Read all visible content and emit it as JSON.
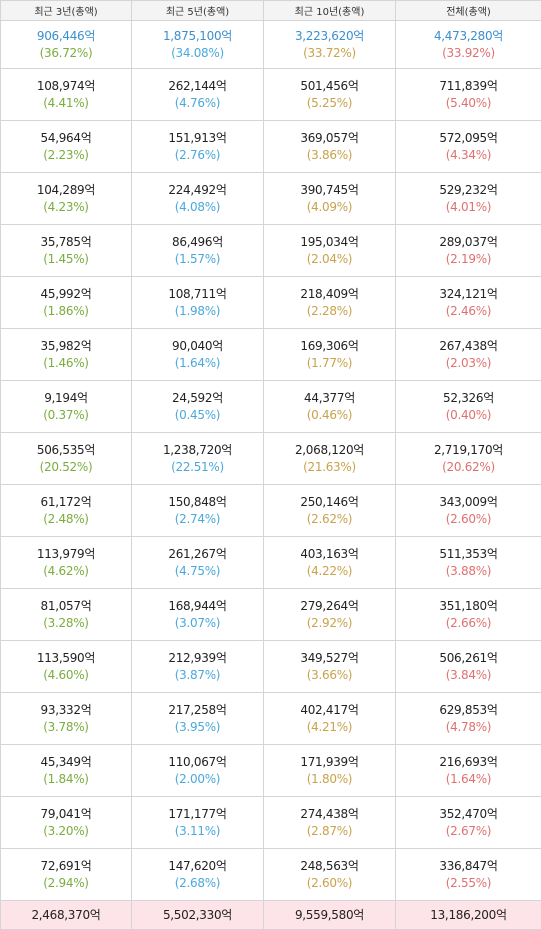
{
  "headers": [
    "최근 3년(총액)",
    "최근 5년(총액)",
    "최근 10년(총액)",
    "전체(총액)"
  ],
  "rows": [
    [
      [
        "906,446억",
        "(36.72%)"
      ],
      [
        "1,875,100억",
        "(34.08%)"
      ],
      [
        "3,223,620억",
        "(33.72%)"
      ],
      [
        "4,473,280억",
        "(33.92%)"
      ]
    ],
    [
      [
        "108,974억",
        "(4.41%)"
      ],
      [
        "262,144억",
        "(4.76%)"
      ],
      [
        "501,456억",
        "(5.25%)"
      ],
      [
        "711,839억",
        "(5.40%)"
      ]
    ],
    [
      [
        "54,964억",
        "(2.23%)"
      ],
      [
        "151,913억",
        "(2.76%)"
      ],
      [
        "369,057억",
        "(3.86%)"
      ],
      [
        "572,095억",
        "(4.34%)"
      ]
    ],
    [
      [
        "104,289억",
        "(4.23%)"
      ],
      [
        "224,492억",
        "(4.08%)"
      ],
      [
        "390,745억",
        "(4.09%)"
      ],
      [
        "529,232억",
        "(4.01%)"
      ]
    ],
    [
      [
        "35,785억",
        "(1.45%)"
      ],
      [
        "86,496억",
        "(1.57%)"
      ],
      [
        "195,034억",
        "(2.04%)"
      ],
      [
        "289,037억",
        "(2.19%)"
      ]
    ],
    [
      [
        "45,992억",
        "(1.86%)"
      ],
      [
        "108,711억",
        "(1.98%)"
      ],
      [
        "218,409억",
        "(2.28%)"
      ],
      [
        "324,121억",
        "(2.46%)"
      ]
    ],
    [
      [
        "35,982억",
        "(1.46%)"
      ],
      [
        "90,040억",
        "(1.64%)"
      ],
      [
        "169,306억",
        "(1.77%)"
      ],
      [
        "267,438억",
        "(2.03%)"
      ]
    ],
    [
      [
        "9,194억",
        "(0.37%)"
      ],
      [
        "24,592억",
        "(0.45%)"
      ],
      [
        "44,377억",
        "(0.46%)"
      ],
      [
        "52,326억",
        "(0.40%)"
      ]
    ],
    [
      [
        "506,535억",
        "(20.52%)"
      ],
      [
        "1,238,720억",
        "(22.51%)"
      ],
      [
        "2,068,120억",
        "(21.63%)"
      ],
      [
        "2,719,170억",
        "(20.62%)"
      ]
    ],
    [
      [
        "61,172억",
        "(2.48%)"
      ],
      [
        "150,848억",
        "(2.74%)"
      ],
      [
        "250,146억",
        "(2.62%)"
      ],
      [
        "343,009억",
        "(2.60%)"
      ]
    ],
    [
      [
        "113,979억",
        "(4.62%)"
      ],
      [
        "261,267억",
        "(4.75%)"
      ],
      [
        "403,163억",
        "(4.22%)"
      ],
      [
        "511,353억",
        "(3.88%)"
      ]
    ],
    [
      [
        "81,057억",
        "(3.28%)"
      ],
      [
        "168,944억",
        "(3.07%)"
      ],
      [
        "279,264억",
        "(2.92%)"
      ],
      [
        "351,180억",
        "(2.66%)"
      ]
    ],
    [
      [
        "113,590억",
        "(4.60%)"
      ],
      [
        "212,939억",
        "(3.87%)"
      ],
      [
        "349,527억",
        "(3.66%)"
      ],
      [
        "506,261억",
        "(3.84%)"
      ]
    ],
    [
      [
        "93,332억",
        "(3.78%)"
      ],
      [
        "217,258억",
        "(3.95%)"
      ],
      [
        "402,417억",
        "(4.21%)"
      ],
      [
        "629,853억",
        "(4.78%)"
      ]
    ],
    [
      [
        "45,349억",
        "(1.84%)"
      ],
      [
        "110,067억",
        "(2.00%)"
      ],
      [
        "171,939억",
        "(1.80%)"
      ],
      [
        "216,693억",
        "(1.64%)"
      ]
    ],
    [
      [
        "79,041억",
        "(3.20%)"
      ],
      [
        "171,177억",
        "(3.11%)"
      ],
      [
        "274,438억",
        "(2.87%)"
      ],
      [
        "352,470억",
        "(2.67%)"
      ]
    ],
    [
      [
        "72,691억",
        "(2.94%)"
      ],
      [
        "147,620억",
        "(2.68%)"
      ],
      [
        "248,563억",
        "(2.60%)"
      ],
      [
        "336,847억",
        "(2.55%)"
      ]
    ]
  ],
  "totals": [
    "2,468,370억",
    "5,502,330억",
    "9,559,580억",
    "13,186,200억"
  ],
  "colors": {
    "first_row_amount": "#3a8fd0",
    "pct_col1": "#7aad3d",
    "pct_col2": "#4ba8dc",
    "pct_col3": "#c9a24c",
    "pct_col4": "#e07070",
    "total_row_bg": "#fde4e8"
  }
}
